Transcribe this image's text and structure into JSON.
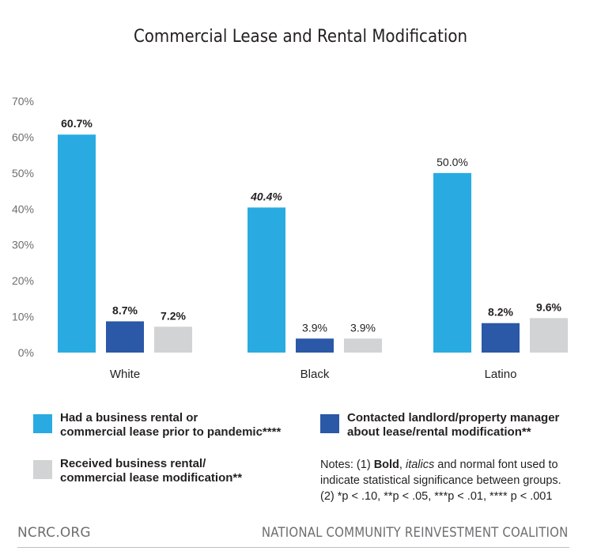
{
  "chart_data": {
    "type": "bar",
    "title": "Commercial Lease and Rental Modification",
    "categories": [
      "White",
      "Black",
      "Latino"
    ],
    "ylim": [
      0,
      70
    ],
    "yticks": [
      "0%",
      "10%",
      "20%",
      "30%",
      "40%",
      "50%",
      "60%",
      "70%"
    ],
    "grid": false,
    "series": [
      {
        "name": "Had a business rental or\ncommercial lease prior to pandemic****",
        "color": "#29abe2",
        "values": [
          60.7,
          40.4,
          50.0
        ],
        "labels": [
          "60.7%",
          "40.4%",
          "50.0%"
        ],
        "label_styles": [
          "bold",
          "italic",
          "normal"
        ]
      },
      {
        "name": "Contacted landlord/property manager\nabout lease/rental modification**",
        "color": "#2b58a7",
        "values": [
          8.7,
          3.9,
          8.2
        ],
        "labels": [
          "8.7%",
          "3.9%",
          "8.2%"
        ],
        "label_styles": [
          "bold",
          "normal",
          "bold"
        ]
      },
      {
        "name": "Received business rental/\ncommercial lease modification**",
        "color": "#d1d3d4",
        "values": [
          7.2,
          3.9,
          9.6
        ],
        "labels": [
          "7.2%",
          "3.9%",
          "9.6%"
        ],
        "label_styles": [
          "bold",
          "normal",
          "bold"
        ]
      }
    ],
    "legend_position": "bottom"
  },
  "notes": {
    "line1_pre": "Notes: (1) ",
    "bold_word": "Bold",
    "sep": ", ",
    "italic_word": "italics",
    "line1_post": " and normal font used to indicate statistical significance between groups.",
    "line2": "(2) *p < .10, **p < .05, ***p < .01, **** p < .001"
  },
  "footer": {
    "left": "NCRC.ORG",
    "right": "NATIONAL COMMUNITY REINVESTMENT COALITION"
  }
}
